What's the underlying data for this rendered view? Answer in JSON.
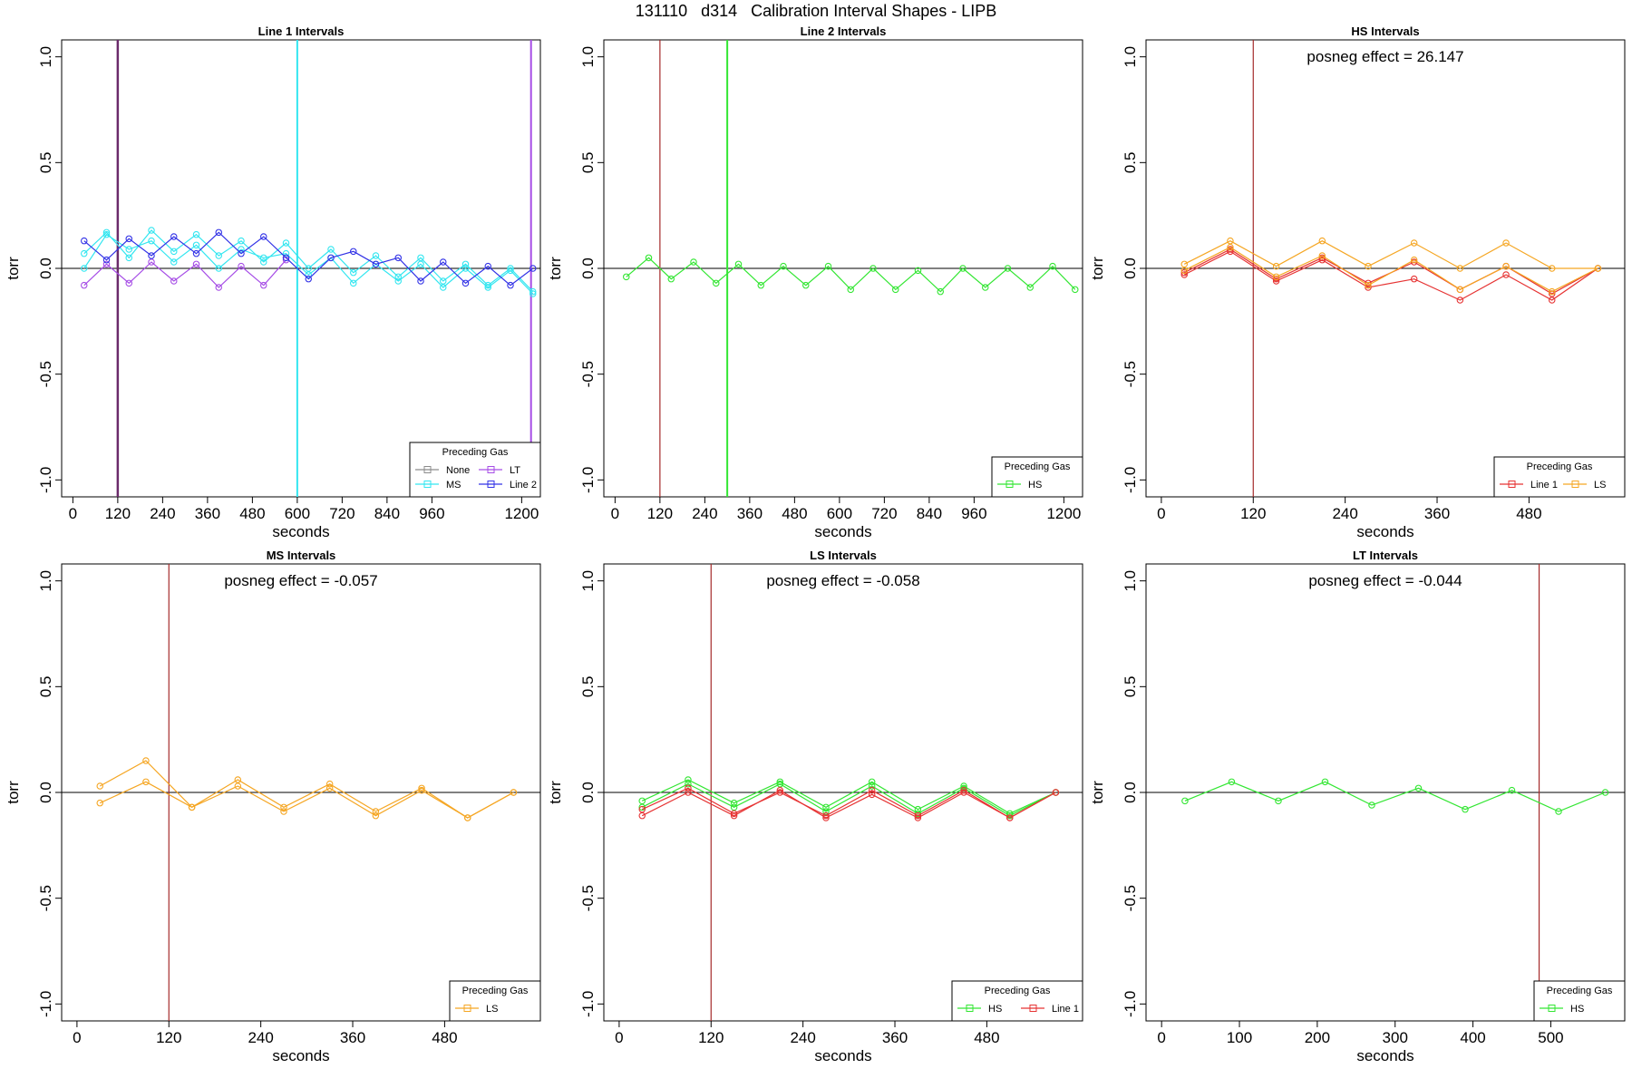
{
  "page": {
    "title": "131110   d314   Calibration Interval Shapes - LIPB"
  },
  "colors": {
    "None": "#8c8c8c",
    "MS": "#33e6f0",
    "LT": "#a64de6",
    "Line 2": "#3333e6",
    "HS": "#33e633",
    "Line 1": "#e63333",
    "LS": "#f5a623",
    "vline_red": "#a52a2a",
    "vline_purple": "#6b2a6b"
  },
  "chart_data": [
    {
      "type": "line",
      "title": "Line 1 Intervals",
      "xlabel": "seconds",
      "ylabel": "torr",
      "xlim": [
        -30,
        1250
      ],
      "ylim": [
        -1.08,
        1.08
      ],
      "xticks": [
        0,
        120,
        240,
        360,
        480,
        600,
        720,
        840,
        960,
        1200
      ],
      "yticks": [
        -1.0,
        -0.5,
        0.0,
        0.5,
        1.0
      ],
      "annotation": "",
      "vlines": [
        {
          "x": 120,
          "color": "vline_purple",
          "width": 2.5
        },
        {
          "x": 600,
          "color": "MS",
          "width": 2
        },
        {
          "x": 1225,
          "color": "LT",
          "width": 2
        }
      ],
      "legend": {
        "title": "Preceding Gas",
        "position": "bottom-right",
        "columns": 2,
        "entries": [
          "None",
          "LT",
          "MS",
          "Line 2"
        ]
      },
      "series": [
        {
          "name": "MS",
          "x": [
            30,
            90,
            150,
            210,
            270,
            330,
            390,
            450,
            510,
            570,
            630,
            690,
            750,
            810,
            870,
            930,
            990,
            1050,
            1110,
            1170,
            1230
          ],
          "values": [
            0.07,
            0.17,
            0.05,
            0.18,
            0.08,
            0.16,
            0.06,
            0.13,
            0.03,
            0.12,
            0.0,
            0.09,
            -0.02,
            0.06,
            -0.04,
            0.05,
            -0.06,
            0.02,
            -0.08,
            0.0,
            -0.11
          ]
        },
        {
          "name": "MS",
          "x": [
            30,
            90,
            150,
            210,
            270,
            330,
            390,
            450,
            510,
            570,
            630,
            690,
            750,
            810,
            870,
            930,
            990,
            1050,
            1110,
            1170,
            1230
          ],
          "values": [
            0.0,
            0.16,
            0.09,
            0.13,
            0.03,
            0.11,
            0.0,
            0.09,
            0.05,
            0.07,
            -0.03,
            0.05,
            -0.07,
            0.02,
            -0.06,
            0.02,
            -0.09,
            0.0,
            -0.09,
            -0.01,
            -0.12
          ]
        },
        {
          "name": "LT",
          "x": [
            30,
            90,
            150,
            210,
            270,
            330,
            390,
            450,
            510,
            570
          ],
          "values": [
            -0.08,
            0.02,
            -0.07,
            0.03,
            -0.06,
            0.02,
            -0.09,
            0.01,
            -0.08,
            0.04
          ]
        },
        {
          "name": "Line 2",
          "x": [
            30,
            90,
            150,
            210,
            270,
            330,
            390,
            450,
            510,
            570,
            630,
            690,
            750,
            810,
            870,
            930,
            990,
            1050,
            1110,
            1170,
            1230
          ],
          "values": [
            0.13,
            0.04,
            0.14,
            0.06,
            0.15,
            0.07,
            0.17,
            0.07,
            0.15,
            0.05,
            -0.05,
            0.05,
            0.08,
            0.02,
            0.05,
            -0.06,
            0.03,
            -0.07,
            0.01,
            -0.08,
            0.0
          ]
        }
      ]
    },
    {
      "type": "line",
      "title": "Line 2 Intervals",
      "xlabel": "seconds",
      "ylabel": "torr",
      "xlim": [
        -30,
        1250
      ],
      "ylim": [
        -1.08,
        1.08
      ],
      "xticks": [
        0,
        120,
        240,
        360,
        480,
        600,
        720,
        840,
        960,
        1200
      ],
      "yticks": [
        -1.0,
        -0.5,
        0.0,
        0.5,
        1.0
      ],
      "annotation": "",
      "vlines": [
        {
          "x": 120,
          "color": "vline_red",
          "width": 1.2
        },
        {
          "x": 300,
          "color": "HS",
          "width": 2
        }
      ],
      "legend": {
        "title": "Preceding Gas",
        "position": "bottom-right",
        "columns": 1,
        "entries": [
          "HS"
        ]
      },
      "series": [
        {
          "name": "HS",
          "x": [
            30,
            90,
            150,
            210,
            270,
            330,
            390,
            450,
            510,
            570,
            630,
            690,
            750,
            810,
            870,
            930,
            990,
            1050,
            1110,
            1170,
            1230
          ],
          "values": [
            -0.04,
            0.05,
            -0.05,
            0.03,
            -0.07,
            0.02,
            -0.08,
            0.01,
            -0.08,
            0.01,
            -0.1,
            0.0,
            -0.1,
            -0.01,
            -0.11,
            0.0,
            -0.09,
            0.0,
            -0.09,
            0.01,
            -0.1
          ]
        }
      ]
    },
    {
      "type": "line",
      "title": "HS Intervals",
      "xlabel": "seconds",
      "ylabel": "torr",
      "xlim": [
        -20,
        605
      ],
      "ylim": [
        -1.08,
        1.08
      ],
      "xticks": [
        0,
        120,
        240,
        360,
        480
      ],
      "yticks": [
        -1.0,
        -0.5,
        0.0,
        0.5,
        1.0
      ],
      "annotation": "posneg effect = 26.147",
      "vlines": [
        {
          "x": 120,
          "color": "vline_red",
          "width": 1.2
        }
      ],
      "legend": {
        "title": "Preceding Gas",
        "position": "bottom-right",
        "columns": 2,
        "entries": [
          "Line 1",
          "LS"
        ]
      },
      "series": [
        {
          "name": "Line 1",
          "x": [
            30,
            90,
            150,
            210,
            270,
            330,
            390,
            450,
            510,
            570
          ],
          "values": [
            -0.03,
            0.08,
            -0.06,
            0.04,
            -0.09,
            -0.05,
            -0.15,
            -0.03,
            -0.15,
            0.0
          ]
        },
        {
          "name": "Line 1",
          "x": [
            30,
            90,
            150,
            210,
            270,
            330,
            390,
            450,
            510,
            570
          ],
          "values": [
            -0.02,
            0.09,
            -0.05,
            0.05,
            -0.07,
            0.03,
            -0.1,
            0.01,
            -0.12,
            0.0
          ]
        },
        {
          "name": "LS",
          "x": [
            30,
            90,
            150,
            210,
            270,
            330,
            390,
            450,
            510,
            570
          ],
          "values": [
            0.02,
            0.13,
            0.01,
            0.13,
            0.01,
            0.12,
            0.0,
            0.12,
            0.0,
            0.0
          ]
        },
        {
          "name": "LS",
          "x": [
            30,
            90,
            150,
            210,
            270,
            330,
            390,
            450,
            510,
            570
          ],
          "values": [
            -0.01,
            0.1,
            -0.04,
            0.06,
            -0.08,
            0.04,
            -0.1,
            0.01,
            -0.11,
            0.0
          ]
        }
      ]
    },
    {
      "type": "line",
      "title": "MS Intervals",
      "xlabel": "seconds",
      "ylabel": "torr",
      "xlim": [
        -20,
        605
      ],
      "ylim": [
        -1.08,
        1.08
      ],
      "xticks": [
        0,
        120,
        240,
        360,
        480
      ],
      "yticks": [
        -1.0,
        -0.5,
        0.0,
        0.5,
        1.0
      ],
      "annotation": "posneg effect = -0.057",
      "vlines": [
        {
          "x": 120,
          "color": "vline_red",
          "width": 1.2
        }
      ],
      "legend": {
        "title": "Preceding Gas",
        "position": "bottom-right",
        "columns": 1,
        "entries": [
          "LS"
        ]
      },
      "series": [
        {
          "name": "LS",
          "x": [
            30,
            90,
            150,
            210,
            270,
            330,
            390,
            450,
            510,
            570
          ],
          "values": [
            0.03,
            0.15,
            -0.07,
            0.06,
            -0.07,
            0.04,
            -0.09,
            0.02,
            -0.12,
            0.0
          ]
        },
        {
          "name": "LS",
          "x": [
            30,
            90,
            150,
            210,
            270,
            330,
            390,
            450,
            510,
            570
          ],
          "values": [
            -0.05,
            0.05,
            -0.07,
            0.03,
            -0.09,
            0.02,
            -0.11,
            0.01,
            -0.12,
            0.0
          ]
        }
      ]
    },
    {
      "type": "line",
      "title": "LS Intervals",
      "xlabel": "seconds",
      "ylabel": "torr",
      "xlim": [
        -20,
        605
      ],
      "ylim": [
        -1.08,
        1.08
      ],
      "xticks": [
        0,
        120,
        240,
        360,
        480
      ],
      "yticks": [
        -1.0,
        -0.5,
        0.0,
        0.5,
        1.0
      ],
      "annotation": "posneg effect = -0.058",
      "vlines": [
        {
          "x": 120,
          "color": "vline_red",
          "width": 1.2
        }
      ],
      "legend": {
        "title": "Preceding Gas",
        "position": "bottom-right",
        "columns": 2,
        "entries": [
          "HS",
          "Line 1"
        ]
      },
      "series": [
        {
          "name": "HS",
          "x": [
            30,
            90,
            150,
            210,
            270,
            330,
            390,
            450,
            510,
            570
          ],
          "values": [
            -0.04,
            0.06,
            -0.05,
            0.05,
            -0.07,
            0.05,
            -0.08,
            0.03,
            -0.1,
            0.0
          ]
        },
        {
          "name": "HS",
          "x": [
            30,
            90,
            150,
            210,
            270,
            330,
            390,
            450,
            510,
            570
          ],
          "values": [
            -0.07,
            0.04,
            -0.07,
            0.04,
            -0.09,
            0.03,
            -0.1,
            0.02,
            -0.11,
            0.0
          ]
        },
        {
          "name": "Line 1",
          "x": [
            30,
            90,
            150,
            210,
            270,
            330,
            390,
            450,
            510,
            570
          ],
          "values": [
            -0.11,
            0.0,
            -0.11,
            0.01,
            -0.12,
            -0.01,
            -0.12,
            0.0,
            -0.12,
            0.0
          ]
        },
        {
          "name": "Line 1",
          "x": [
            30,
            90,
            150,
            210,
            270,
            330,
            390,
            450,
            510,
            570
          ],
          "values": [
            -0.08,
            0.02,
            -0.1,
            0.0,
            -0.11,
            0.01,
            -0.11,
            0.01,
            -0.12,
            0.0
          ]
        }
      ]
    },
    {
      "type": "line",
      "title": "LT Intervals",
      "xlabel": "seconds",
      "ylabel": "torr",
      "xlim": [
        -20,
        595
      ],
      "ylim": [
        -1.08,
        1.08
      ],
      "xticks": [
        0,
        100,
        200,
        300,
        400,
        500
      ],
      "yticks": [
        -1.0,
        -0.5,
        0.0,
        0.5,
        1.0
      ],
      "annotation": "posneg effect = -0.044",
      "vlines": [
        {
          "x": 485,
          "color": "vline_red",
          "width": 1.2
        }
      ],
      "legend": {
        "title": "Preceding Gas",
        "position": "bottom-right",
        "columns": 1,
        "entries": [
          "HS"
        ]
      },
      "series": [
        {
          "name": "HS",
          "x": [
            30,
            90,
            150,
            210,
            270,
            330,
            390,
            450,
            510,
            570
          ],
          "values": [
            -0.04,
            0.05,
            -0.04,
            0.05,
            -0.06,
            0.02,
            -0.08,
            0.01,
            -0.09,
            0.0
          ]
        }
      ]
    }
  ]
}
